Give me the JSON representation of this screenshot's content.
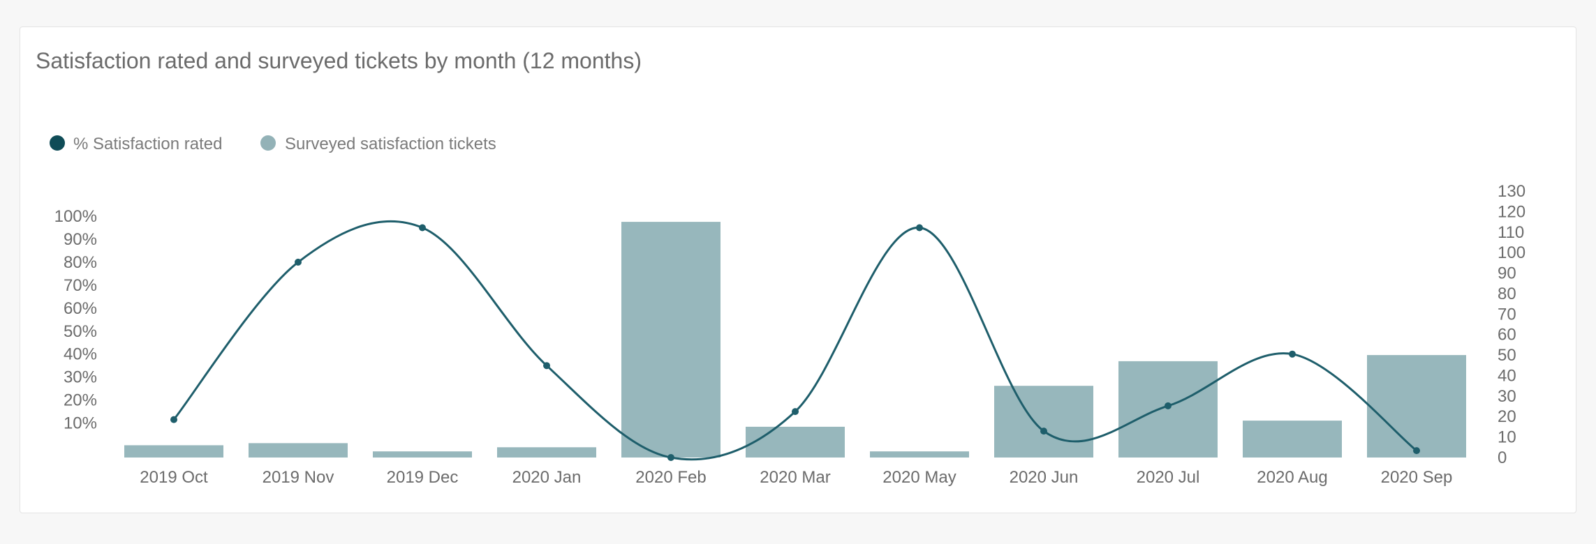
{
  "card": {
    "title": "Satisfaction rated and surveyed tickets by month (12 months)"
  },
  "colors": {
    "line": "#1e5e6b",
    "bar": "#97b7bc",
    "legend_line_dot": "#0f4c57",
    "legend_bar_dot": "#93b2b7"
  },
  "chart_data": {
    "type": "bar+line",
    "title": "Satisfaction rated and surveyed tickets by month (12 months)",
    "categories": [
      "2019 Oct",
      "2019 Nov",
      "2019 Dec",
      "2020 Jan",
      "2020 Feb",
      "2020 Mar",
      "2020 May",
      "2020 Jun",
      "2020 Jul",
      "2020 Aug",
      "2020 Sep"
    ],
    "series": [
      {
        "name": "% Satisfaction rated",
        "type": "line",
        "axis": "left",
        "smooth": true,
        "values": [
          11.5,
          80,
          95,
          35,
          -5,
          15,
          95,
          6.5,
          17.5,
          40,
          -2
        ]
      },
      {
        "name": "Surveyed satisfaction tickets",
        "type": "bar",
        "axis": "right",
        "values": [
          6,
          7,
          3,
          5,
          115,
          15,
          3,
          35,
          47,
          18,
          50
        ]
      }
    ],
    "y_left": {
      "range": [
        -5,
        100
      ],
      "ticks": [
        "100%",
        "90%",
        "80%",
        "70%",
        "60%",
        "50%",
        "40%",
        "30%",
        "20%",
        "10%"
      ],
      "tick_values": [
        100,
        90,
        80,
        70,
        60,
        50,
        40,
        30,
        20,
        10
      ]
    },
    "y_right": {
      "range": [
        0,
        130
      ],
      "ticks": [
        "130",
        "120",
        "110",
        "100",
        "90",
        "80",
        "70",
        "60",
        "50",
        "40",
        "30",
        "20",
        "10",
        "0"
      ],
      "tick_values": [
        130,
        120,
        110,
        100,
        90,
        80,
        70,
        60,
        50,
        40,
        30,
        20,
        10,
        0
      ]
    },
    "legend": {
      "position": "top-left",
      "items": [
        "% Satisfaction rated",
        "Surveyed satisfaction tickets"
      ]
    },
    "grid": false
  }
}
